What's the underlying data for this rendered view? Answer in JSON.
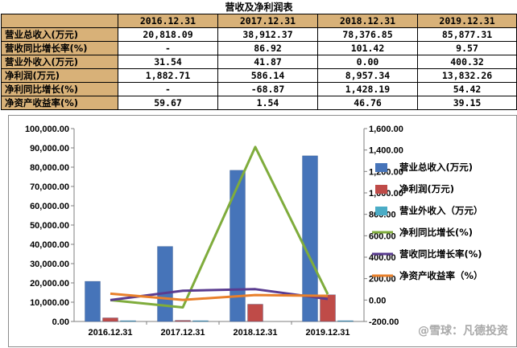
{
  "table": {
    "title": "营收及净利润表",
    "years": [
      "2016.12.31",
      "2017.12.31",
      "2018.12.31",
      "2019.12.31"
    ],
    "rows": [
      {
        "label": "营业总收入(万元)",
        "values": [
          "20,818.09",
          "38,912.37",
          "78,376.85",
          "85,877.31"
        ]
      },
      {
        "label": "营收同比增长率(%)",
        "values": [
          "-",
          "86.92",
          "101.42",
          "9.57"
        ]
      },
      {
        "label": "营业外收入(万元)",
        "values": [
          "31.54",
          "41.87",
          "0.00",
          "400.32"
        ]
      },
      {
        "label": "净利润(万元)",
        "values": [
          "1,882.71",
          "586.14",
          "8,957.34",
          "13,832.26"
        ]
      },
      {
        "label": "净利同比增长(%)",
        "values": [
          "-",
          "-68.87",
          "1,428.19",
          "54.42"
        ]
      },
      {
        "label": "净资产收益率(%)",
        "values": [
          "59.67",
          "1.54",
          "46.76",
          "39.15"
        ]
      }
    ]
  },
  "chart_data": {
    "type": "bar",
    "categories": [
      "2016.12.31",
      "2017.12.31",
      "2018.12.31",
      "2019.12.31"
    ],
    "left_axis": {
      "min": 0,
      "max": 100000,
      "step": 10000,
      "tick_labels": [
        "0.00",
        "10,000.00",
        "20,000.00",
        "30,000.00",
        "40,000.00",
        "50,000.00",
        "60,000.00",
        "70,000.00",
        "80,000.00",
        "90,000.00",
        "100,000.00"
      ]
    },
    "right_axis": {
      "min": -200,
      "max": 1600,
      "step": 200,
      "tick_labels": [
        "-200.00",
        "0.00",
        "200.00",
        "400.00",
        "600.00",
        "800.00",
        "1,000.00",
        "1,200.00",
        "1,400.00",
        "1,600.00"
      ]
    },
    "bar_series": [
      {
        "name": "营业总收入(万元)",
        "color": "#4674b9",
        "values": [
          20818.09,
          38912.37,
          78376.85,
          85877.31
        ]
      },
      {
        "name": "净利润(万元)",
        "color": "#bf4b48",
        "values": [
          1882.71,
          586.14,
          8957.34,
          13832.26
        ]
      },
      {
        "name": "营业外收入（万元）",
        "color": "#4bacc6",
        "values": [
          31.54,
          41.87,
          0,
          400.32
        ]
      }
    ],
    "line_series": [
      {
        "name": "净利同比增长(%)",
        "color": "#7fac3c",
        "values": [
          0,
          -68.87,
          1428.19,
          54.42
        ]
      },
      {
        "name": "营收同比增长率(%)",
        "color": "#5a3c90",
        "values": [
          0,
          86.92,
          101.42,
          9.57
        ]
      },
      {
        "name": "净资产收益率（%）",
        "color": "#e9802b",
        "values": [
          59.67,
          1.54,
          46.76,
          39.15
        ]
      }
    ],
    "legend_position": "right",
    "watermark": "@雪球：凡德投资"
  }
}
